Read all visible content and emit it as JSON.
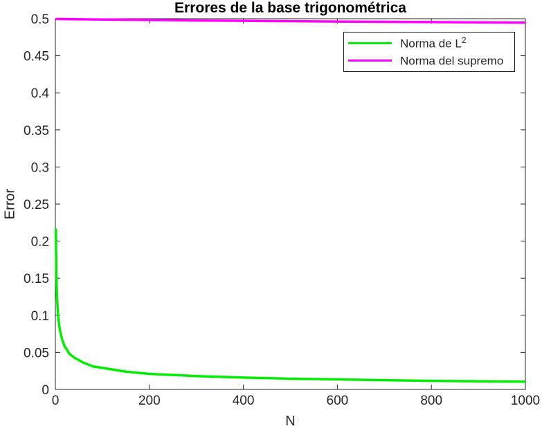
{
  "chart_data": {
    "type": "line",
    "title": "Errores de la base trigonométrica",
    "xlabel": "N",
    "ylabel": "Error",
    "xlim": [
      0,
      1000
    ],
    "ylim": [
      0,
      0.5
    ],
    "xticks": [
      0,
      200,
      400,
      600,
      800,
      1000
    ],
    "xtick_labels": [
      "0",
      "200",
      "400",
      "600",
      "800",
      "1000"
    ],
    "yticks": [
      0,
      0.05,
      0.1,
      0.15,
      0.2,
      0.25,
      0.3,
      0.35,
      0.4,
      0.45,
      0.5
    ],
    "ytick_labels": [
      "0",
      "0.05",
      "0.1",
      "0.15",
      "0.2",
      "0.25",
      "0.3",
      "0.35",
      "0.4",
      "0.45",
      "0.5"
    ],
    "grid": false,
    "box": true,
    "tick_direction": "in",
    "legend_position": "top-right",
    "axis_color": "#262626",
    "background_color": "#ffffff",
    "legend": [
      {
        "text": "Norma de L",
        "sup": "2"
      },
      {
        "text": "Norma del supremo",
        "sup": ""
      }
    ],
    "series": [
      {
        "id": "norma-l2",
        "name": "Norma de L^2",
        "color": "#00ee00",
        "line_width": 3.5,
        "x": [
          1,
          2,
          3,
          4,
          6,
          8,
          10,
          15,
          20,
          30,
          40,
          60,
          80,
          100,
          150,
          200,
          300,
          400,
          500,
          600,
          700,
          800,
          900,
          1000
        ],
        "y": [
          0.217,
          0.16,
          0.134,
          0.118,
          0.098,
          0.087,
          0.079,
          0.066,
          0.058,
          0.048,
          0.043,
          0.036,
          0.031,
          0.029,
          0.024,
          0.021,
          0.018,
          0.016,
          0.0145,
          0.0135,
          0.0125,
          0.0115,
          0.011,
          0.0105
        ]
      },
      {
        "id": "norma-supremo",
        "name": "Norma del supremo",
        "color": "#ff00ff",
        "line_width": 3.5,
        "x": [
          1,
          100,
          200,
          300,
          400,
          500,
          600,
          700,
          800,
          900,
          1000
        ],
        "y": [
          0.4997,
          0.4988,
          0.4982,
          0.4976,
          0.4971,
          0.4966,
          0.4962,
          0.4958,
          0.4954,
          0.495,
          0.4946
        ]
      }
    ]
  }
}
